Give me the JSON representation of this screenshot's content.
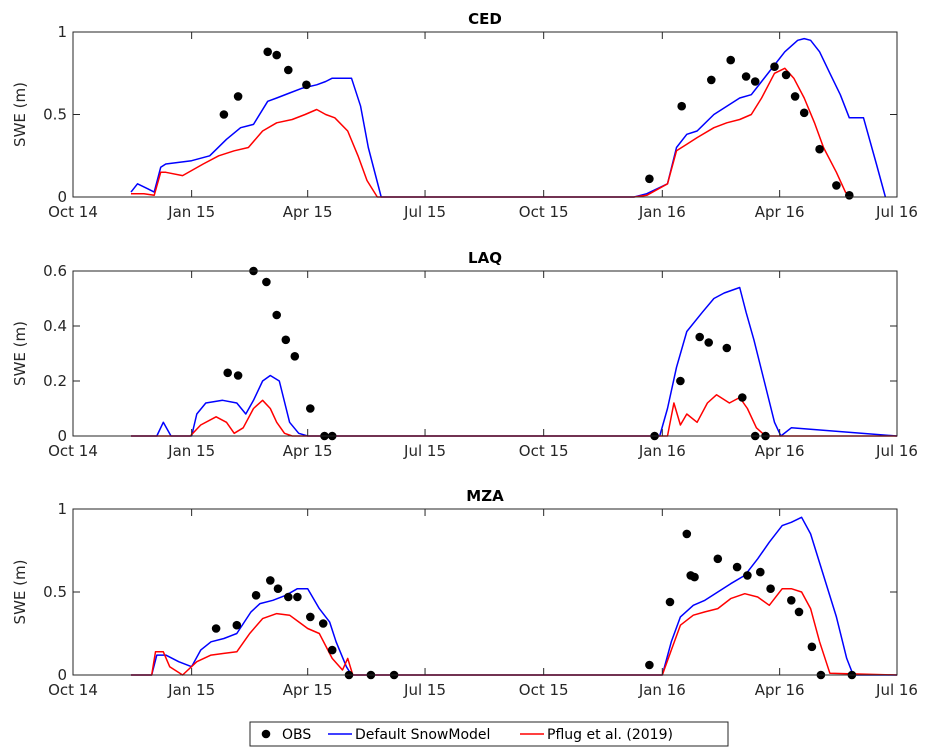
{
  "chart_data": [
    {
      "type": "line",
      "title": "CED",
      "xlabel": "",
      "ylabel": "SWE (m)",
      "xlim": [
        "2014-10-01",
        "2016-07-01"
      ],
      "ylim": [
        0,
        1
      ],
      "xticks": [
        "Oct 14",
        "Jan 15",
        "Apr 15",
        "Jul 15",
        "Oct 15",
        "Jan 16",
        "Apr 16",
        "Jul 16"
      ],
      "yticks": [
        "0",
        "0.5",
        "1"
      ],
      "grid": false,
      "series": [
        {
          "name": "OBS",
          "style": "markers",
          "color": "#000000",
          "x": [
            "2015-01-26",
            "2015-02-06",
            "2015-03-01",
            "2015-03-08",
            "2015-03-17",
            "2015-03-31",
            "2015-12-22",
            "2016-01-16",
            "2016-02-08",
            "2016-02-23",
            "2016-03-06",
            "2016-03-13",
            "2016-03-28",
            "2016-04-06",
            "2016-04-13",
            "2016-04-20",
            "2016-05-02",
            "2016-05-15",
            "2016-05-25"
          ],
          "y": [
            0.5,
            0.61,
            0.88,
            0.86,
            0.77,
            0.68,
            0.11,
            0.55,
            0.71,
            0.83,
            0.73,
            0.7,
            0.79,
            0.74,
            0.61,
            0.51,
            0.29,
            0.07,
            0.01
          ]
        },
        {
          "name": "Default SnowModel",
          "style": "line",
          "color": "#0000ff",
          "x": [
            "2014-11-15",
            "2014-11-20",
            "2014-11-28",
            "2014-12-03",
            "2014-12-08",
            "2014-12-12",
            "2015-01-01",
            "2015-01-15",
            "2015-01-28",
            "2015-02-08",
            "2015-02-18",
            "2015-03-01",
            "2015-03-08",
            "2015-03-18",
            "2015-03-28",
            "2015-04-08",
            "2015-04-15",
            "2015-04-20",
            "2015-04-25",
            "2015-05-05",
            "2015-05-12",
            "2015-05-18",
            "2015-05-28",
            "2015-12-10",
            "2015-12-20",
            "2016-01-05",
            "2016-01-12",
            "2016-01-20",
            "2016-01-28",
            "2016-02-10",
            "2016-02-20",
            "2016-03-01",
            "2016-03-10",
            "2016-03-18",
            "2016-03-28",
            "2016-04-05",
            "2016-04-15",
            "2016-04-20",
            "2016-04-25",
            "2016-05-02",
            "2016-05-10",
            "2016-05-18",
            "2016-05-25",
            "2016-06-05",
            "2016-06-15",
            "2016-06-22"
          ],
          "y": [
            0.03,
            0.08,
            0.05,
            0.03,
            0.18,
            0.2,
            0.22,
            0.25,
            0.35,
            0.42,
            0.44,
            0.58,
            0.6,
            0.63,
            0.66,
            0.68,
            0.7,
            0.72,
            0.72,
            0.72,
            0.55,
            0.3,
            0.0,
            0.0,
            0.02,
            0.08,
            0.3,
            0.38,
            0.4,
            0.5,
            0.55,
            0.6,
            0.62,
            0.7,
            0.8,
            0.88,
            0.95,
            0.96,
            0.95,
            0.88,
            0.75,
            0.62,
            0.48,
            0.48,
            0.2,
            0.0
          ]
        },
        {
          "name": "Pflug et al. (2019)",
          "style": "line",
          "color": "#ff0000",
          "x": [
            "2014-11-15",
            "2014-11-25",
            "2014-12-03",
            "2014-12-08",
            "2014-12-12",
            "2014-12-25",
            "2015-01-10",
            "2015-01-22",
            "2015-02-03",
            "2015-02-14",
            "2015-02-25",
            "2015-03-08",
            "2015-03-20",
            "2015-03-30",
            "2015-04-08",
            "2015-04-15",
            "2015-04-22",
            "2015-05-02",
            "2015-05-10",
            "2015-05-17",
            "2015-05-25",
            "2015-12-10",
            "2015-12-20",
            "2016-01-05",
            "2016-01-12",
            "2016-01-20",
            "2016-01-28",
            "2016-02-10",
            "2016-02-20",
            "2016-03-01",
            "2016-03-10",
            "2016-03-18",
            "2016-03-28",
            "2016-04-05",
            "2016-04-12",
            "2016-04-20",
            "2016-04-28",
            "2016-05-05",
            "2016-05-15",
            "2016-05-22",
            "2016-05-28"
          ],
          "y": [
            0.02,
            0.02,
            0.01,
            0.15,
            0.15,
            0.13,
            0.2,
            0.25,
            0.28,
            0.3,
            0.4,
            0.45,
            0.47,
            0.5,
            0.53,
            0.5,
            0.48,
            0.4,
            0.25,
            0.1,
            0.0,
            0.0,
            0.01,
            0.08,
            0.28,
            0.32,
            0.36,
            0.42,
            0.45,
            0.47,
            0.5,
            0.6,
            0.75,
            0.78,
            0.72,
            0.6,
            0.45,
            0.3,
            0.15,
            0.03,
            0.0
          ]
        }
      ]
    },
    {
      "type": "line",
      "title": "LAQ",
      "xlabel": "",
      "ylabel": "SWE (m)",
      "xlim": [
        "2014-10-01",
        "2016-07-01"
      ],
      "ylim": [
        0,
        0.6
      ],
      "xticks": [
        "Oct 14",
        "Jan 15",
        "Apr 15",
        "Jul 15",
        "Oct 15",
        "Jan 16",
        "Apr 16",
        "Jul 16"
      ],
      "yticks": [
        "0",
        "0.2",
        "0.4",
        "0.6"
      ],
      "grid": false,
      "series": [
        {
          "name": "OBS",
          "style": "markers",
          "color": "#000000",
          "x": [
            "2015-01-29",
            "2015-02-06",
            "2015-02-18",
            "2015-02-28",
            "2015-03-08",
            "2015-03-15",
            "2015-03-22",
            "2015-04-03",
            "2015-04-14",
            "2015-04-20",
            "2015-12-26",
            "2016-01-15",
            "2016-01-30",
            "2016-02-06",
            "2016-02-20",
            "2016-03-03",
            "2016-03-13",
            "2016-03-21"
          ],
          "y": [
            0.23,
            0.22,
            0.6,
            0.56,
            0.44,
            0.35,
            0.29,
            0.1,
            0.0,
            0.0,
            0.0,
            0.2,
            0.36,
            0.34,
            0.32,
            0.14,
            0.0,
            0.0
          ]
        },
        {
          "name": "Default SnowModel",
          "style": "line",
          "color": "#0000ff",
          "x": [
            "2014-11-15",
            "2014-12-05",
            "2014-12-10",
            "2014-12-16",
            "2015-01-01",
            "2015-01-05",
            "2015-01-12",
            "2015-01-25",
            "2015-02-05",
            "2015-02-12",
            "2015-02-18",
            "2015-02-25",
            "2015-03-03",
            "2015-03-10",
            "2015-03-18",
            "2015-03-25",
            "2015-04-01",
            "2015-07-01",
            "2015-12-01",
            "2015-12-30",
            "2016-01-05",
            "2016-01-12",
            "2016-01-20",
            "2016-02-01",
            "2016-02-10",
            "2016-02-18",
            "2016-03-01",
            "2016-03-06",
            "2016-03-12",
            "2016-03-20",
            "2016-03-28",
            "2016-04-02",
            "2016-04-10",
            "2016-07-01"
          ],
          "y": [
            0.0,
            0.0,
            0.05,
            0.0,
            0.0,
            0.08,
            0.12,
            0.13,
            0.12,
            0.08,
            0.13,
            0.2,
            0.22,
            0.2,
            0.05,
            0.01,
            0.0,
            0.0,
            0.0,
            0.0,
            0.1,
            0.25,
            0.38,
            0.45,
            0.5,
            0.52,
            0.54,
            0.45,
            0.35,
            0.2,
            0.05,
            0.0,
            0.03,
            0.0
          ]
        },
        {
          "name": "Pflug et al. (2019)",
          "style": "line",
          "color": "#ff0000",
          "x": [
            "2014-11-15",
            "2014-12-31",
            "2015-01-08",
            "2015-01-20",
            "2015-01-28",
            "2015-02-03",
            "2015-02-10",
            "2015-02-18",
            "2015-02-25",
            "2015-03-03",
            "2015-03-08",
            "2015-03-14",
            "2015-03-20",
            "2015-07-01",
            "2015-12-01",
            "2016-01-05",
            "2016-01-10",
            "2016-01-15",
            "2016-01-20",
            "2016-01-28",
            "2016-02-05",
            "2016-02-12",
            "2016-02-22",
            "2016-03-01",
            "2016-03-07",
            "2016-03-14",
            "2016-03-21",
            "2016-04-01",
            "2016-07-01"
          ],
          "y": [
            0.0,
            0.0,
            0.04,
            0.07,
            0.05,
            0.01,
            0.03,
            0.1,
            0.13,
            0.1,
            0.05,
            0.01,
            0.0,
            0.0,
            0.0,
            0.0,
            0.12,
            0.04,
            0.08,
            0.05,
            0.12,
            0.15,
            0.12,
            0.14,
            0.1,
            0.03,
            0.0,
            0.0,
            0.0
          ]
        }
      ]
    },
    {
      "type": "line",
      "title": "MZA",
      "xlabel": "",
      "ylabel": "SWE (m)",
      "xlim": [
        "2014-10-01",
        "2016-07-01"
      ],
      "ylim": [
        0,
        1
      ],
      "xticks": [
        "Oct 14",
        "Jan 15",
        "Apr 15",
        "Jul 15",
        "Oct 15",
        "Jan 16",
        "Apr 16",
        "Jul 16"
      ],
      "yticks": [
        "0",
        "0.5",
        "1"
      ],
      "grid": false,
      "series": [
        {
          "name": "OBS",
          "style": "markers",
          "color": "#000000",
          "x": [
            "2015-01-20",
            "2015-02-05",
            "2015-02-20",
            "2015-03-03",
            "2015-03-09",
            "2015-03-17",
            "2015-03-24",
            "2015-04-03",
            "2015-04-13",
            "2015-04-20",
            "2015-05-03",
            "2015-05-20",
            "2015-06-07",
            "2015-12-22",
            "2016-01-07",
            "2016-01-20",
            "2016-01-23",
            "2016-01-26",
            "2016-02-13",
            "2016-02-28",
            "2016-03-07",
            "2016-03-17",
            "2016-03-25",
            "2016-04-10",
            "2016-04-16",
            "2016-04-26",
            "2016-05-03",
            "2016-05-27"
          ],
          "y": [
            0.28,
            0.3,
            0.48,
            0.57,
            0.52,
            0.47,
            0.47,
            0.35,
            0.31,
            0.15,
            0.0,
            0.0,
            0.0,
            0.06,
            0.44,
            0.85,
            0.6,
            0.59,
            0.7,
            0.65,
            0.6,
            0.62,
            0.52,
            0.45,
            0.38,
            0.17,
            0.0,
            0.0
          ]
        },
        {
          "name": "Default SnowModel",
          "style": "line",
          "color": "#0000ff",
          "x": [
            "2014-11-15",
            "2014-12-01",
            "2014-12-05",
            "2014-12-12",
            "2014-12-22",
            "2015-01-01",
            "2015-01-08",
            "2015-01-16",
            "2015-01-26",
            "2015-02-05",
            "2015-02-16",
            "2015-02-23",
            "2015-03-05",
            "2015-03-15",
            "2015-03-24",
            "2015-04-01",
            "2015-04-10",
            "2015-04-18",
            "2015-04-23",
            "2015-05-01",
            "2015-05-05",
            "2015-07-01",
            "2015-12-01",
            "2016-01-01",
            "2016-01-08",
            "2016-01-15",
            "2016-01-25",
            "2016-02-03",
            "2016-02-13",
            "2016-02-23",
            "2016-03-05",
            "2016-03-15",
            "2016-03-24",
            "2016-04-03",
            "2016-04-10",
            "2016-04-18",
            "2016-04-25",
            "2016-05-05",
            "2016-05-15",
            "2016-05-23",
            "2016-05-28",
            "2016-07-01"
          ],
          "y": [
            0.0,
            0.0,
            0.12,
            0.12,
            0.08,
            0.05,
            0.15,
            0.2,
            0.22,
            0.25,
            0.38,
            0.43,
            0.45,
            0.48,
            0.52,
            0.52,
            0.4,
            0.32,
            0.2,
            0.05,
            0.0,
            0.0,
            0.0,
            0.0,
            0.2,
            0.35,
            0.42,
            0.45,
            0.5,
            0.55,
            0.6,
            0.7,
            0.8,
            0.9,
            0.92,
            0.95,
            0.85,
            0.6,
            0.35,
            0.1,
            0.0,
            0.0
          ]
        },
        {
          "name": "Pflug et al. (2019)",
          "style": "line",
          "color": "#ff0000",
          "x": [
            "2014-11-15",
            "2014-12-01",
            "2014-12-04",
            "2014-12-10",
            "2014-12-15",
            "2014-12-25",
            "2015-01-05",
            "2015-01-16",
            "2015-01-26",
            "2015-02-05",
            "2015-02-15",
            "2015-02-25",
            "2015-03-08",
            "2015-03-18",
            "2015-03-25",
            "2015-04-01",
            "2015-04-10",
            "2015-04-20",
            "2015-04-28",
            "2015-05-02",
            "2015-05-06",
            "2015-07-01",
            "2015-12-01",
            "2016-01-01",
            "2016-01-08",
            "2016-01-15",
            "2016-01-25",
            "2016-02-03",
            "2016-02-13",
            "2016-02-23",
            "2016-03-05",
            "2016-03-15",
            "2016-03-24",
            "2016-04-03",
            "2016-04-10",
            "2016-04-18",
            "2016-04-25",
            "2016-05-02",
            "2016-05-10",
            "2016-07-01"
          ],
          "y": [
            0.0,
            0.0,
            0.14,
            0.14,
            0.05,
            0.0,
            0.08,
            0.12,
            0.13,
            0.14,
            0.25,
            0.34,
            0.37,
            0.36,
            0.32,
            0.28,
            0.25,
            0.1,
            0.03,
            0.1,
            0.0,
            0.0,
            0.0,
            0.0,
            0.15,
            0.3,
            0.36,
            0.38,
            0.4,
            0.46,
            0.49,
            0.47,
            0.42,
            0.52,
            0.52,
            0.5,
            0.4,
            0.2,
            0.01,
            0.0
          ]
        }
      ]
    }
  ],
  "legend": {
    "placement": "bottom-center",
    "entries": [
      {
        "label": "OBS",
        "kind": "marker",
        "color": "#000000"
      },
      {
        "label": "Default SnowModel",
        "kind": "line",
        "color": "#0000ff"
      },
      {
        "label": "Pflug et al. (2019)",
        "kind": "line",
        "color": "#ff0000"
      }
    ]
  }
}
